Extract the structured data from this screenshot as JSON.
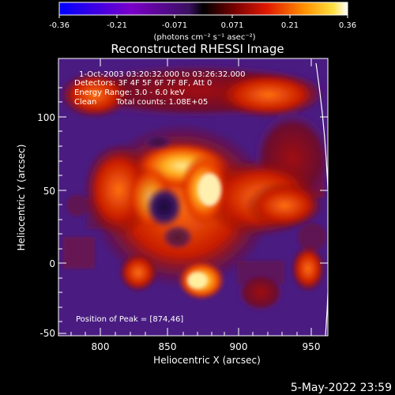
{
  "colorbar": {
    "tick_labels": [
      "-0.36",
      "-0.21",
      "-0.071",
      "0.071",
      "0.21",
      "0.36"
    ],
    "units": "(photons cm⁻² s⁻¹ asec⁻²)"
  },
  "plot": {
    "title": "Reconstructed RHESSI Image",
    "xlabel": "Heliocentric X (arcsec)",
    "ylabel": "Heliocentric Y (arcsec)",
    "x_ticks": [
      "800",
      "850",
      "900",
      "950"
    ],
    "y_ticks": [
      "100",
      "50",
      "0",
      "-50"
    ],
    "xlim": [
      770,
      962
    ],
    "ylim": [
      -52,
      137
    ]
  },
  "info": {
    "time_range": "1-Oct-2003 03:20:32.000 to 03:26:32.000",
    "detectors": "Detectors: 3F 4F 5F 6F 7F 8F, Att 0",
    "energy": "Energy Range: 3.0 - 6.0 keV",
    "algorithm": "Clean",
    "counts": "Total counts: 1.08E+05",
    "peak": "Position of Peak = [874,46]"
  },
  "footer": {
    "date": "5-May-2022 23:59"
  },
  "colors": {
    "colormap": [
      "#0000ff",
      "#8000c0",
      "#5a1a8c",
      "#000000",
      "#700000",
      "#d81a00",
      "#ff7a00",
      "#ffcc30",
      "#ffffff"
    ],
    "axis": "#ffffff",
    "limb": "#ffffff"
  }
}
